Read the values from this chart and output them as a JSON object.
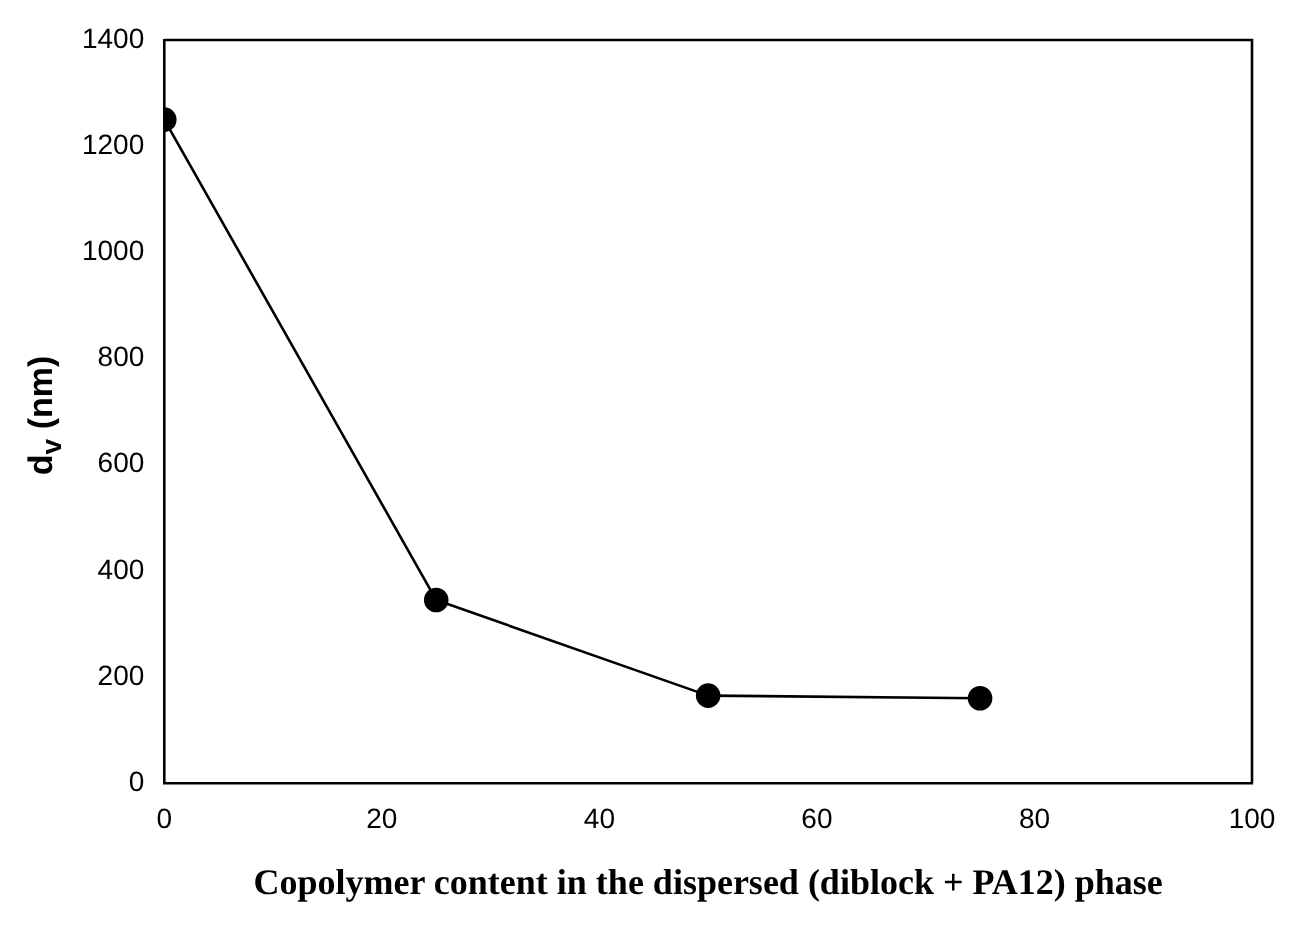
{
  "chart_data": {
    "type": "line",
    "xlabel": "Copolymer content in the dispersed (diblock + PA12) phase",
    "ylabel": "d$_{v}$ (nm)",
    "x": [
      0,
      25,
      50,
      75
    ],
    "series": [
      {
        "color": "#000000",
        "values": [
          1250,
          345,
          165,
          160
        ]
      }
    ],
    "xlim": [
      0,
      100
    ],
    "xticks": [
      0,
      20,
      40,
      60,
      80,
      100
    ],
    "ylim": [
      0,
      1400
    ],
    "yticks": [
      0,
      200,
      400,
      600,
      800,
      1000,
      1200,
      1400
    ],
    "grid": false,
    "legend": false,
    "marker": "circle",
    "line_style": "solid"
  }
}
